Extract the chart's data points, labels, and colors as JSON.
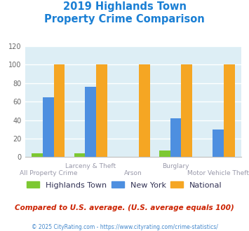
{
  "title_line1": "2019 Highlands Town",
  "title_line2": "Property Crime Comparison",
  "title_color": "#1a7fd4",
  "categories": [
    "All Property Crime",
    "Larceny & Theft",
    "Arson",
    "Burglary",
    "Motor Vehicle Theft"
  ],
  "highlands_town": [
    4,
    4,
    0,
    7,
    0
  ],
  "new_york": [
    65,
    76,
    0,
    42,
    30
  ],
  "national": [
    100,
    100,
    100,
    100,
    100
  ],
  "bar_colors": {
    "highlands": "#7dc832",
    "new_york": "#4d8fe0",
    "national": "#f5a623"
  },
  "ylim": [
    0,
    120
  ],
  "yticks": [
    0,
    20,
    40,
    60,
    80,
    100,
    120
  ],
  "bg_color": "#ddeef5",
  "grid_color": "#ffffff",
  "group_labels_top": [
    "",
    "Larceny & Theft",
    "",
    "Burglary",
    ""
  ],
  "group_labels_bot": [
    "All Property Crime",
    "",
    "Arson",
    "",
    "Motor Vehicle Theft"
  ],
  "footer_text": "Compared to U.S. average. (U.S. average equals 100)",
  "credit_text": "© 2025 CityRating.com - https://www.cityrating.com/crime-statistics/",
  "legend_labels": [
    "Highlands Town",
    "New York",
    "National"
  ],
  "label_color": "#9999aa",
  "footer_color": "#cc2200",
  "credit_color": "#4488cc"
}
